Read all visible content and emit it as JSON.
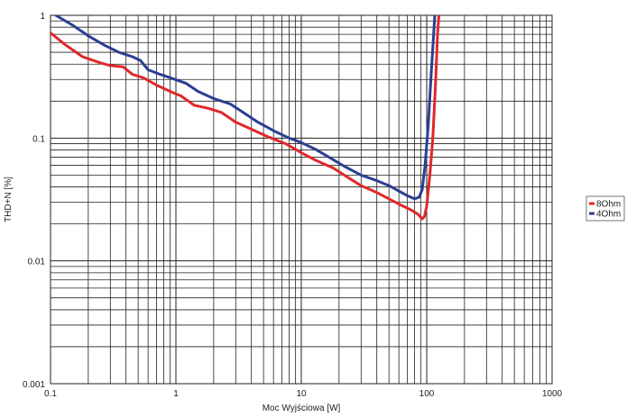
{
  "chart_data": {
    "type": "line",
    "title": "",
    "xlabel": "Moc Wyjściowa [W]",
    "ylabel": "THD+N [%]",
    "x_scale": "log",
    "y_scale": "log",
    "xlim": [
      0.1,
      1000
    ],
    "ylim": [
      0.001,
      1
    ],
    "x_ticks": [
      0.1,
      1,
      10,
      100,
      1000
    ],
    "x_tick_labels": [
      "0.1",
      "1",
      "10",
      "100",
      "1000"
    ],
    "y_ticks": [
      0.001,
      0.01,
      0.1,
      1
    ],
    "y_tick_labels": [
      "0.001",
      "0.01",
      "0.1",
      "1"
    ],
    "grid": true,
    "legend_position": "right",
    "series": [
      {
        "name": "8Ohm",
        "color": "#e0282b",
        "points": [
          [
            0.1,
            0.72
          ],
          [
            0.13,
            0.58
          ],
          [
            0.18,
            0.46
          ],
          [
            0.25,
            0.41
          ],
          [
            0.3,
            0.39
          ],
          [
            0.38,
            0.38
          ],
          [
            0.45,
            0.33
          ],
          [
            0.55,
            0.31
          ],
          [
            0.7,
            0.27
          ],
          [
            0.9,
            0.24
          ],
          [
            1.1,
            0.22
          ],
          [
            1.4,
            0.185
          ],
          [
            1.8,
            0.175
          ],
          [
            2.3,
            0.162
          ],
          [
            3,
            0.135
          ],
          [
            4,
            0.118
          ],
          [
            5.5,
            0.102
          ],
          [
            7.5,
            0.09
          ],
          [
            10,
            0.076
          ],
          [
            13,
            0.066
          ],
          [
            18,
            0.057
          ],
          [
            25,
            0.046
          ],
          [
            30,
            0.041
          ],
          [
            40,
            0.036
          ],
          [
            50,
            0.032
          ],
          [
            60,
            0.029
          ],
          [
            75,
            0.026
          ],
          [
            85,
            0.024
          ],
          [
            92,
            0.022
          ],
          [
            96,
            0.023
          ],
          [
            100,
            0.028
          ],
          [
            106,
            0.05
          ],
          [
            112,
            0.1
          ],
          [
            118,
            0.3
          ],
          [
            122,
            0.7
          ],
          [
            125,
            1.0
          ]
        ]
      },
      {
        "name": "4Ohm",
        "color": "#2a3f93",
        "points": [
          [
            0.11,
            1.0
          ],
          [
            0.15,
            0.83
          ],
          [
            0.2,
            0.68
          ],
          [
            0.27,
            0.57
          ],
          [
            0.35,
            0.5
          ],
          [
            0.45,
            0.46
          ],
          [
            0.52,
            0.43
          ],
          [
            0.6,
            0.36
          ],
          [
            0.75,
            0.33
          ],
          [
            0.9,
            0.31
          ],
          [
            1.2,
            0.28
          ],
          [
            1.5,
            0.24
          ],
          [
            2,
            0.21
          ],
          [
            2.7,
            0.19
          ],
          [
            3.5,
            0.16
          ],
          [
            4.5,
            0.135
          ],
          [
            6,
            0.115
          ],
          [
            8,
            0.1
          ],
          [
            10,
            0.092
          ],
          [
            13,
            0.081
          ],
          [
            17,
            0.069
          ],
          [
            22,
            0.059
          ],
          [
            30,
            0.05
          ],
          [
            40,
            0.045
          ],
          [
            50,
            0.041
          ],
          [
            60,
            0.037
          ],
          [
            70,
            0.034
          ],
          [
            80,
            0.032
          ],
          [
            87,
            0.033
          ],
          [
            92,
            0.038
          ],
          [
            97,
            0.06
          ],
          [
            103,
            0.13
          ],
          [
            108,
            0.3
          ],
          [
            113,
            0.65
          ],
          [
            116,
            1.0
          ]
        ]
      }
    ]
  }
}
